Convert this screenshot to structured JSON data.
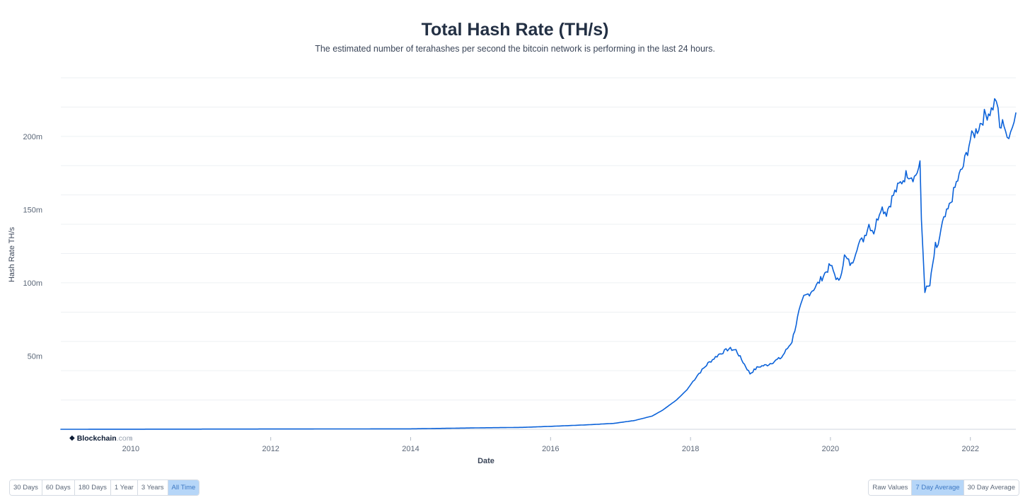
{
  "chart_data": {
    "type": "line",
    "title": "Total Hash Rate (TH/s)",
    "subtitle": "The estimated number of terahashes per second the bitcoin network is performing in the last 24 hours.",
    "xlabel": "Date",
    "ylabel": "Hash Rate TH/s",
    "x_range": [
      2009.0,
      2022.65
    ],
    "ylim": [
      0,
      240000000
    ],
    "y_ticks": [
      {
        "value": 50000000,
        "label": "50m"
      },
      {
        "value": 100000000,
        "label": "100m"
      },
      {
        "value": 150000000,
        "label": "150m"
      },
      {
        "value": 200000000,
        "label": "200m"
      }
    ],
    "x_ticks": [
      {
        "value": 2010,
        "label": "2010"
      },
      {
        "value": 2012,
        "label": "2012"
      },
      {
        "value": 2014,
        "label": "2014"
      },
      {
        "value": 2016,
        "label": "2016"
      },
      {
        "value": 2018,
        "label": "2018"
      },
      {
        "value": 2020,
        "label": "2020"
      },
      {
        "value": 2022,
        "label": "2022"
      }
    ],
    "grid": true,
    "series": [
      {
        "name": "Hash Rate TH/s",
        "color": "#0b62d9",
        "x": [
          2009.0,
          2014.0,
          2015.0,
          2015.6,
          2016.0,
          2016.5,
          2016.9,
          2017.2,
          2017.45,
          2017.6,
          2017.8,
          2017.95,
          2018.1,
          2018.25,
          2018.4,
          2018.55,
          2018.65,
          2018.75,
          2018.85,
          2018.95,
          2019.0,
          2019.1,
          2019.3,
          2019.45,
          2019.55,
          2019.62,
          2019.7,
          2019.8,
          2019.9,
          2020.0,
          2020.12,
          2020.2,
          2020.3,
          2020.38,
          2020.47,
          2020.55,
          2020.62,
          2020.72,
          2020.8,
          2020.9,
          2021.0,
          2021.1,
          2021.2,
          2021.28,
          2021.3,
          2021.35,
          2021.42,
          2021.5,
          2021.52,
          2021.6,
          2021.7,
          2021.8,
          2021.9,
          2022.0,
          2022.1,
          2022.2,
          2022.3,
          2022.37,
          2022.42,
          2022.48,
          2022.55,
          2022.6,
          2022.65
        ],
        "values": [
          0,
          300000,
          1000000,
          1300000,
          2000000,
          3000000,
          4000000,
          6000000,
          9000000,
          13000000,
          20000000,
          27000000,
          37000000,
          45000000,
          51000000,
          55000000,
          54000000,
          46000000,
          38000000,
          42000000,
          43000000,
          44000000,
          49000000,
          60000000,
          80000000,
          90000000,
          93000000,
          98000000,
          105000000,
          112000000,
          100000000,
          118000000,
          112000000,
          125000000,
          130000000,
          140000000,
          135000000,
          152000000,
          148000000,
          160000000,
          168000000,
          175000000,
          172000000,
          180000000,
          143000000,
          95000000,
          98000000,
          125000000,
          122000000,
          140000000,
          152000000,
          168000000,
          180000000,
          198000000,
          205000000,
          214000000,
          218000000,
          226000000,
          205000000,
          210000000,
          195000000,
          210000000,
          216000000
        ]
      }
    ]
  },
  "brand": {
    "mark": "◆",
    "name": "Blockchain",
    "domain": ".com"
  },
  "controls": {
    "time_ranges": [
      "30 Days",
      "60 Days",
      "180 Days",
      "1 Year",
      "3 Years",
      "All Time"
    ],
    "active_time_range": "All Time",
    "modes": [
      "Raw Values",
      "7 Day Average",
      "30 Day Average"
    ],
    "active_mode": "7 Day Average"
  }
}
